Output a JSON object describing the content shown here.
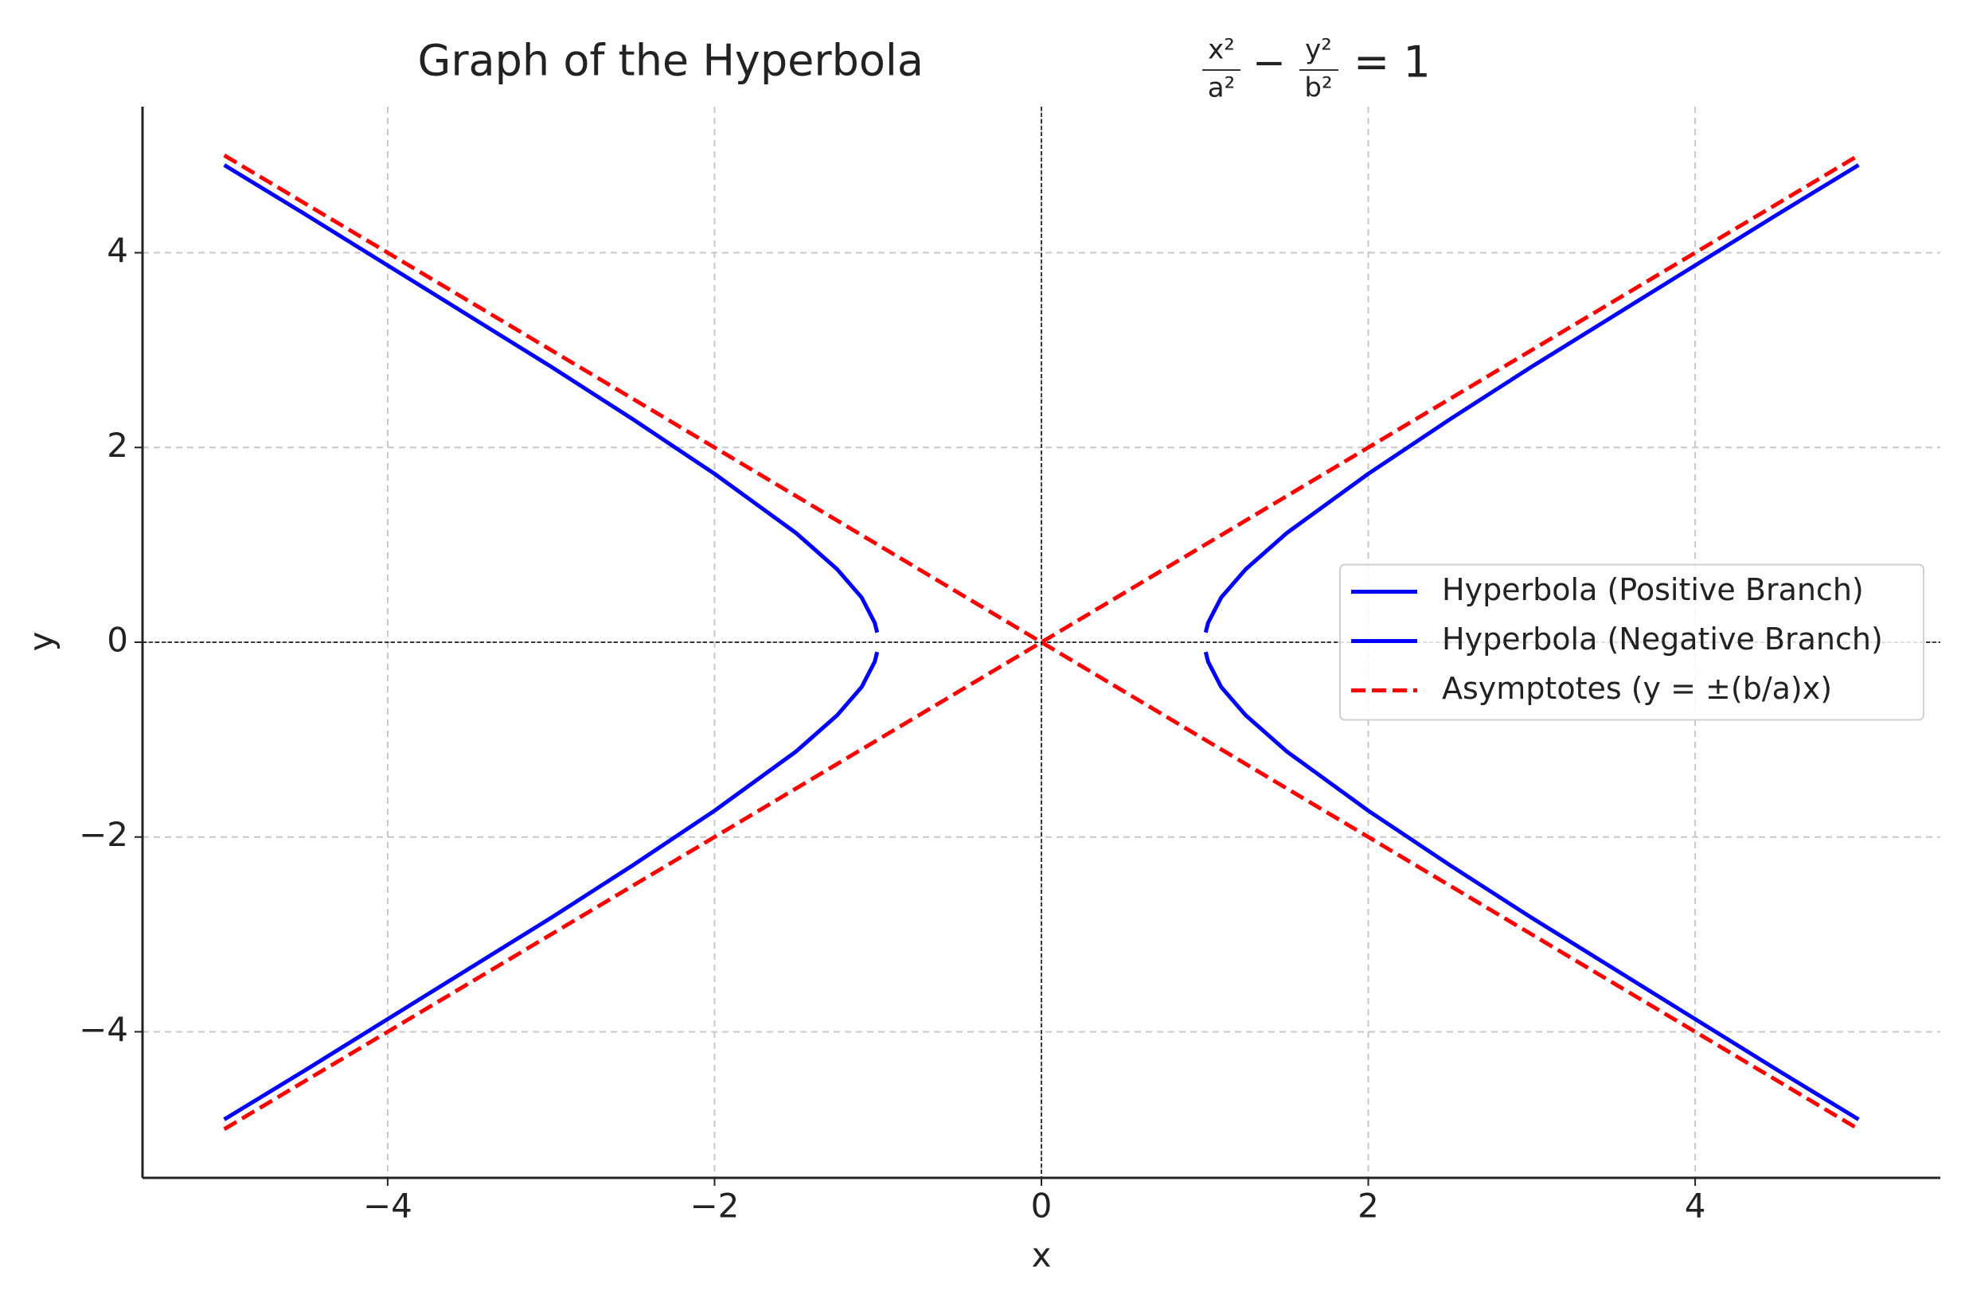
{
  "chart_data": {
    "type": "line",
    "title": "Graph of the Hyperbola",
    "title_equation": {
      "num1": "x²",
      "den1": "a²",
      "op": "−",
      "num2": "y²",
      "den2": "b²",
      "rhs": "= 1"
    },
    "xlabel": "x",
    "ylabel": "y",
    "xlim": [
      -5.5,
      5.5
    ],
    "ylim": [
      -5.5,
      5.5
    ],
    "xticks": [
      {
        "value": -4,
        "label": "−4"
      },
      {
        "value": -2,
        "label": "−2"
      },
      0,
      2,
      4
    ],
    "yticks": [
      {
        "value": -4,
        "label": "−4"
      },
      {
        "value": -2,
        "label": "−2"
      },
      0,
      2,
      4
    ],
    "grid": true,
    "zero_lines": true,
    "legend": "center right",
    "series": [
      {
        "name": "Hyperbola (Positive Branch)",
        "color": "#0000ff",
        "dash": false,
        "x": [
          -5,
          -4.5,
          -4,
          -3.5,
          -3,
          -2.5,
          -2,
          -1.5,
          -1.25,
          -1.1,
          -1.02,
          -1.005,
          null,
          1.005,
          1.02,
          1.1,
          1.25,
          1.5,
          2,
          2.5,
          3,
          3.5,
          4,
          4.5,
          5
        ],
        "values": [
          4.9,
          4.39,
          3.87,
          3.35,
          2.83,
          2.29,
          1.73,
          1.12,
          0.75,
          0.46,
          0.2,
          0.1,
          null,
          0.1,
          0.2,
          0.46,
          0.75,
          1.12,
          1.73,
          2.29,
          2.83,
          3.35,
          3.87,
          4.39,
          4.9
        ]
      },
      {
        "name": "Hyperbola (Negative Branch)",
        "color": "#0000ff",
        "dash": false,
        "x": [
          -5,
          -4.5,
          -4,
          -3.5,
          -3,
          -2.5,
          -2,
          -1.5,
          -1.25,
          -1.1,
          -1.02,
          -1.005,
          null,
          1.005,
          1.02,
          1.1,
          1.25,
          1.5,
          2,
          2.5,
          3,
          3.5,
          4,
          4.5,
          5
        ],
        "values": [
          -4.9,
          -4.39,
          -3.87,
          -3.35,
          -2.83,
          -2.29,
          -1.73,
          -1.12,
          -0.75,
          -0.46,
          -0.2,
          -0.1,
          null,
          -0.1,
          -0.2,
          -0.46,
          -0.75,
          -1.12,
          -1.73,
          -2.29,
          -2.83,
          -3.35,
          -3.87,
          -4.39,
          -4.9
        ]
      },
      {
        "name": "Asymptotes (y = ±(b/a)x)",
        "color": "#ff0000",
        "dash": true,
        "x": [
          -5,
          5,
          null,
          -5,
          5
        ],
        "values": [
          -5,
          5,
          null,
          5,
          -5
        ]
      }
    ]
  }
}
